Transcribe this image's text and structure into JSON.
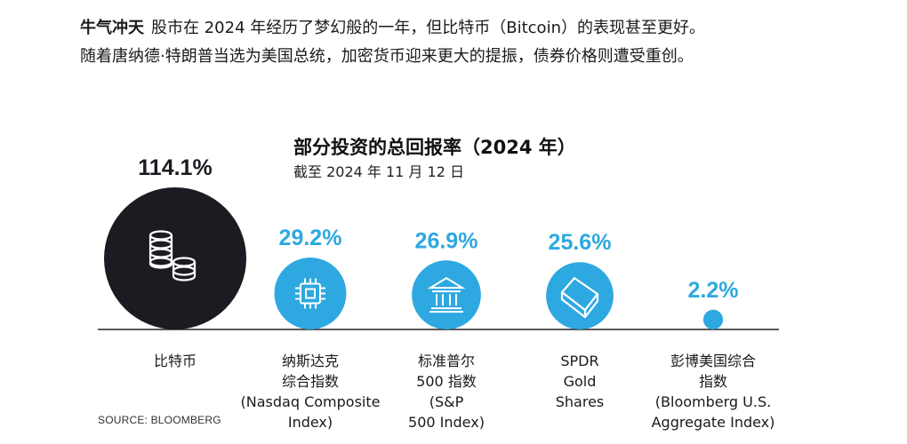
{
  "article": {
    "lead": "牛气冲天",
    "text_line1": "股市在 2024 年经历了梦幻般的一年，但比特币（Bitcoin）的表现甚至更好。",
    "text_line2": "随着唐纳德·特朗普当选为美国总统，加密货币迎来更大的提振，债券价格则遭受重创。"
  },
  "source": "SOURCE: BLOOMBERG",
  "colors": {
    "bitcoin": "#1b1b21",
    "others": "#2ea8e0",
    "bitcoin_label": "#1b1b21",
    "value_label": "#2ea8e0",
    "icon": "#ffffff",
    "baseline": "#222222"
  },
  "chart_data": {
    "type": "bubble",
    "title": "部分投资的总回报率（2024 年）",
    "subtitle": "截至 2024 年 11 月 12 日",
    "unit": "%",
    "categories": [
      {
        "name": "比特币",
        "label_lines": [
          "比特币"
        ],
        "value": 114.1,
        "value_label": "114.1%",
        "icon": "coin-stack-icon"
      },
      {
        "name": "纳斯达克综合指数",
        "label_lines": [
          "纳斯达克",
          "综合指数",
          "(Nasdaq Composite",
          "Index)"
        ],
        "value": 29.2,
        "value_label": "29.2%",
        "icon": "microchip-icon"
      },
      {
        "name": "标准普尔500指数",
        "label_lines": [
          "标准普尔",
          "500 指数",
          "(S&P",
          "500 Index)"
        ],
        "value": 26.9,
        "value_label": "26.9%",
        "icon": "bank-building-icon"
      },
      {
        "name": "SPDR Gold Shares",
        "label_lines": [
          "SPDR",
          "Gold",
          "Shares"
        ],
        "value": 25.6,
        "value_label": "25.6%",
        "icon": "gold-bar-icon"
      },
      {
        "name": "彭博美国综合指数",
        "label_lines": [
          "彭博美国综合",
          "指数",
          "(Bloomberg U.S.",
          "Aggregate Index)"
        ],
        "value": 2.2,
        "value_label": "2.2%",
        "icon": ""
      }
    ]
  }
}
